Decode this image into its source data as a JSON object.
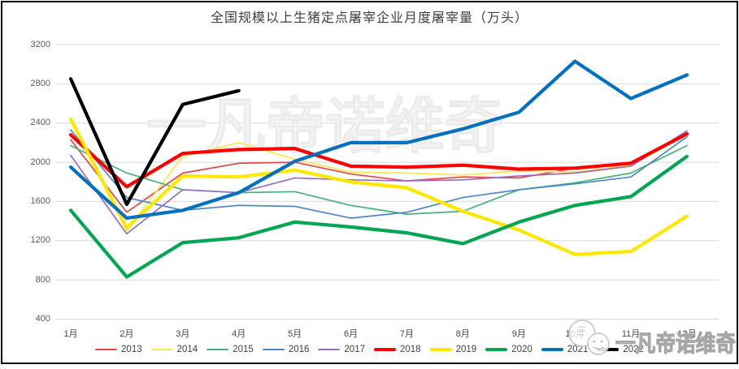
{
  "chart_data": {
    "type": "line",
    "title": "全国规模以上生猪定点屠宰企业月度屠宰量（万头）",
    "x_labels": [
      "1月",
      "2月",
      "3月",
      "4月",
      "5月",
      "6月",
      "7月",
      "8月",
      "9月",
      "10月",
      "11月",
      "12月"
    ],
    "y_ticks": [
      400,
      800,
      1200,
      1600,
      2000,
      2400,
      2800,
      3200
    ],
    "ylim": [
      400,
      3200
    ],
    "grid": true,
    "legend_position": "bottom",
    "grid_color": "#d9d9d9",
    "series": [
      {
        "name": "2013",
        "color": "#e64545",
        "thickness": "thin",
        "values": [
          2230,
          1490,
          1890,
          1990,
          2000,
          1880,
          1810,
          1850,
          1840,
          1940,
          1990,
          2280
        ]
      },
      {
        "name": "2014",
        "color": "#ffe54d",
        "thickness": "thin",
        "values": [
          2430,
          1300,
          2060,
          2200,
          2030,
          1900,
          1890,
          1870,
          1910,
          1900,
          1970,
          2280
        ]
      },
      {
        "name": "2015",
        "color": "#45b27a",
        "thickness": "thin",
        "values": [
          2170,
          1890,
          1720,
          1690,
          1700,
          1560,
          1470,
          1500,
          1720,
          1790,
          1890,
          2170
        ]
      },
      {
        "name": "2016",
        "color": "#4e86c8",
        "thickness": "thin",
        "values": [
          2330,
          1640,
          1510,
          1560,
          1550,
          1430,
          1490,
          1640,
          1720,
          1780,
          1850,
          2260
        ]
      },
      {
        "name": "2017",
        "color": "#9b6bc3",
        "thickness": "thin",
        "values": [
          2070,
          1270,
          1720,
          1690,
          1840,
          1820,
          1810,
          1820,
          1860,
          1890,
          1960,
          2320
        ]
      },
      {
        "name": "2018",
        "color": "#ff0000",
        "thickness": "thick",
        "values": [
          2280,
          1750,
          2090,
          2130,
          2140,
          1960,
          1950,
          1970,
          1930,
          1940,
          1990,
          2290
        ]
      },
      {
        "name": "2019",
        "color": "#ffe800",
        "thickness": "thick",
        "values": [
          2440,
          1330,
          1860,
          1850,
          1920,
          1800,
          1740,
          1500,
          1310,
          1060,
          1090,
          1450
        ]
      },
      {
        "name": "2020",
        "color": "#00a651",
        "thickness": "thick",
        "values": [
          1510,
          830,
          1180,
          1230,
          1390,
          1340,
          1280,
          1170,
          1390,
          1560,
          1650,
          2060
        ]
      },
      {
        "name": "2021",
        "color": "#0070c0",
        "thickness": "thick",
        "values": [
          1950,
          1430,
          1510,
          1690,
          2010,
          2200,
          2200,
          2340,
          2510,
          3030,
          2650,
          2890
        ]
      },
      {
        "name": "2022",
        "color": "#000000",
        "thickness": "thick",
        "values": [
          2850,
          1570,
          2590,
          2730,
          null,
          null,
          null,
          null,
          null,
          null,
          null,
          null
        ]
      }
    ]
  },
  "watermark": {
    "center_text": "一凡帝诺维奇",
    "corner_text": "一凡帝诺维奇",
    "logo": "cartoon-face-logo"
  }
}
